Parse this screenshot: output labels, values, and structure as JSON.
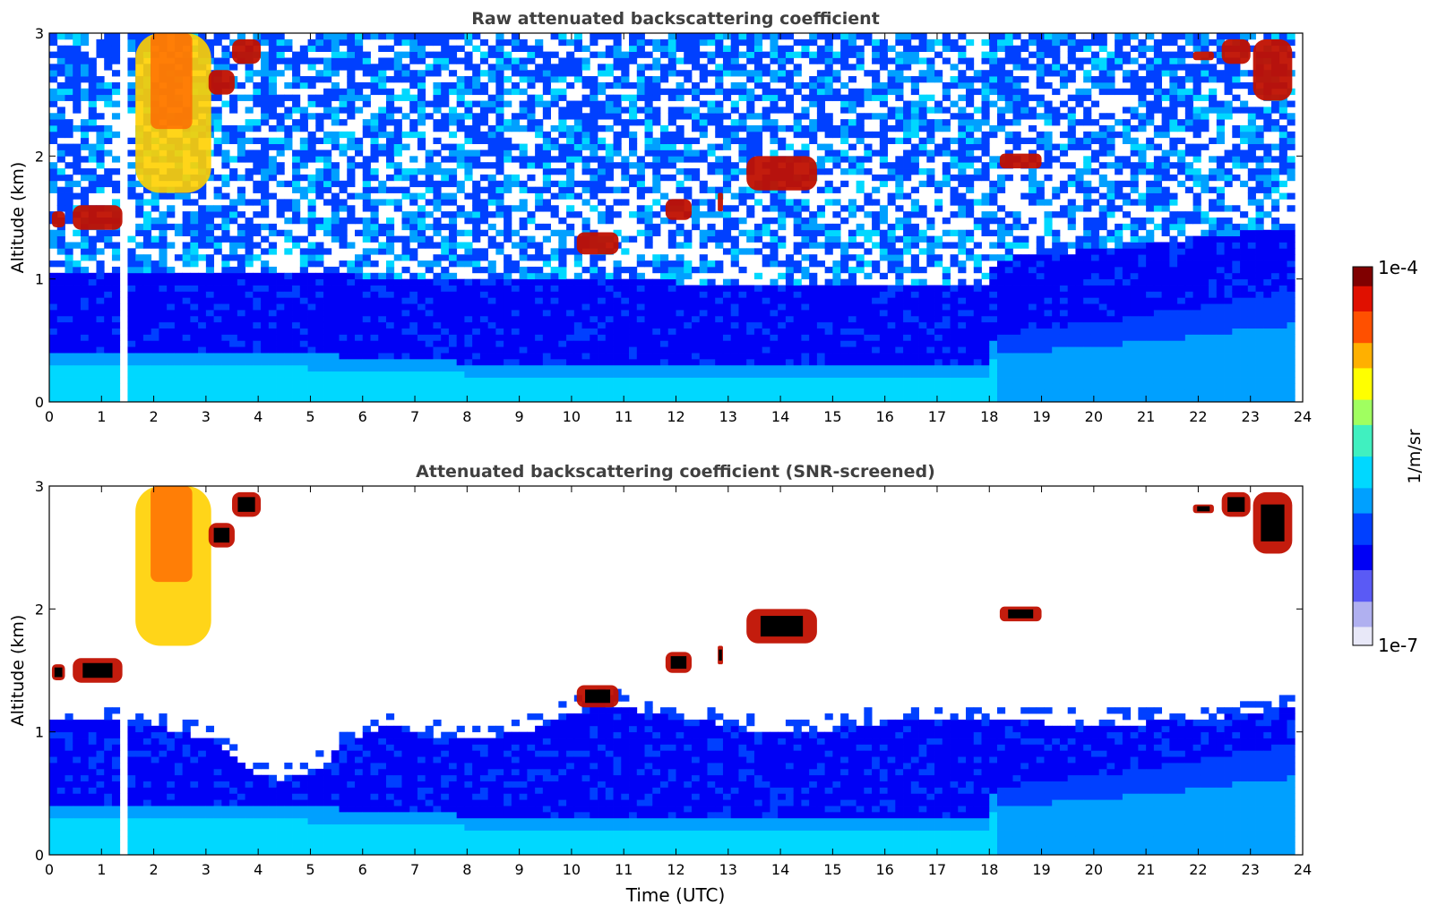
{
  "chart_data": [
    {
      "type": "heatmap",
      "title": "Raw attenuated backscattering coefficient",
      "ylabel": "Altitude (km)",
      "xlabel": "",
      "xlim": [
        0,
        24
      ],
      "ylim": [
        0,
        3
      ],
      "xticks": [
        "0",
        "1",
        "2",
        "3",
        "4",
        "5",
        "6",
        "7",
        "8",
        "9",
        "10",
        "11",
        "12",
        "13",
        "14",
        "15",
        "16",
        "17",
        "18",
        "19",
        "20",
        "21",
        "22",
        "23",
        "24"
      ],
      "yticks": [
        "0",
        "1",
        "2",
        "3"
      ],
      "gap_x": [
        1.42,
        1.55
      ],
      "data_end_x": 23.8,
      "surface_layer_top": [
        [
          0,
          0.42
        ],
        [
          2,
          0.42
        ],
        [
          4,
          0.42
        ],
        [
          6,
          0.36
        ],
        [
          8,
          0.32
        ],
        [
          12,
          0.3
        ],
        [
          16,
          0.3
        ],
        [
          18,
          0.3
        ],
        [
          18.1,
          0.55
        ],
        [
          21,
          0.7
        ],
        [
          23.8,
          0.9
        ]
      ],
      "clouds": [
        {
          "x": [
            0.05,
            0.3
          ],
          "y": [
            1.42,
            1.55
          ]
        },
        {
          "x": [
            0.45,
            1.4
          ],
          "y": [
            1.4,
            1.6
          ]
        },
        {
          "x": [
            1.65,
            3.1
          ],
          "y": [
            1.7,
            3.0
          ]
        },
        {
          "x": [
            3.05,
            3.55
          ],
          "y": [
            2.5,
            2.7
          ]
        },
        {
          "x": [
            3.5,
            4.05
          ],
          "y": [
            2.75,
            2.95
          ]
        },
        {
          "x": [
            10.1,
            10.9
          ],
          "y": [
            1.2,
            1.38
          ]
        },
        {
          "x": [
            11.8,
            12.3
          ],
          "y": [
            1.48,
            1.65
          ]
        },
        {
          "x": [
            12.8,
            12.9
          ],
          "y": [
            1.55,
            1.7
          ]
        },
        {
          "x": [
            13.35,
            14.7
          ],
          "y": [
            1.72,
            2.0
          ]
        },
        {
          "x": [
            18.2,
            19.0
          ],
          "y": [
            1.9,
            2.02
          ]
        },
        {
          "x": [
            21.9,
            22.3
          ],
          "y": [
            2.78,
            2.85
          ]
        },
        {
          "x": [
            22.45,
            23.0
          ],
          "y": [
            2.75,
            2.95
          ]
        },
        {
          "x": [
            23.05,
            23.8
          ],
          "y": [
            2.45,
            2.95
          ]
        }
      ]
    },
    {
      "type": "heatmap",
      "title": "Attenuated backscattering coefficient (SNR-screened)",
      "ylabel": "Altitude (km)",
      "xlabel": "Time (UTC)",
      "xlim": [
        0,
        24
      ],
      "ylim": [
        0,
        3
      ],
      "xticks": [
        "0",
        "1",
        "2",
        "3",
        "4",
        "5",
        "6",
        "7",
        "8",
        "9",
        "10",
        "11",
        "12",
        "13",
        "14",
        "15",
        "16",
        "17",
        "18",
        "19",
        "20",
        "21",
        "22",
        "23",
        "24"
      ],
      "yticks": [
        "0",
        "1",
        "2",
        "3"
      ],
      "gap_x": [
        1.42,
        1.55
      ],
      "data_end_x": 23.8,
      "screen_top": [
        [
          0,
          1.1
        ],
        [
          1,
          1.1
        ],
        [
          2,
          1.05
        ],
        [
          3,
          0.95
        ],
        [
          3.8,
          0.7
        ],
        [
          4.3,
          0.6
        ],
        [
          5,
          0.65
        ],
        [
          5.8,
          0.95
        ],
        [
          6.5,
          1.05
        ],
        [
          7.5,
          0.95
        ],
        [
          8.5,
          0.95
        ],
        [
          9.5,
          1.05
        ],
        [
          10.5,
          1.25
        ],
        [
          11.5,
          1.15
        ],
        [
          12.5,
          1.1
        ],
        [
          13.5,
          1.0
        ],
        [
          14.5,
          1.0
        ],
        [
          15.5,
          1.05
        ],
        [
          16.5,
          1.1
        ],
        [
          18,
          1.1
        ],
        [
          20,
          1.05
        ],
        [
          22,
          1.1
        ],
        [
          23.8,
          1.2
        ]
      ]
    }
  ],
  "colorbar": {
    "label": "1/m/sr",
    "max_label": "1e-4",
    "min_label": "1e-7",
    "colors": [
      "#e8e8f8",
      "#b0b0f0",
      "#5a5af5",
      "#0000f5",
      "#0040ff",
      "#00a0ff",
      "#00d8ff",
      "#40f0c0",
      "#a0ff60",
      "#ffff00",
      "#ffb000",
      "#ff5000",
      "#e01000",
      "#800000"
    ]
  }
}
